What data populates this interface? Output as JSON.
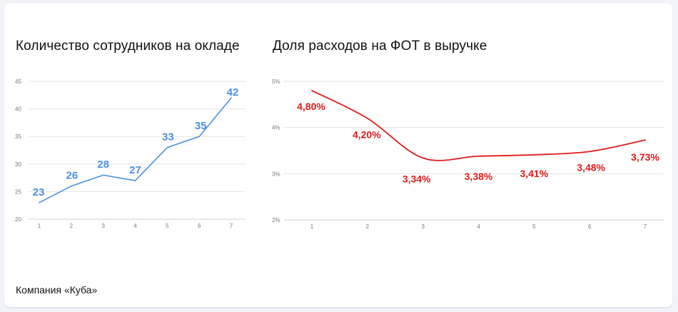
{
  "footer": "Компания «Куба»",
  "colors": {
    "left_series": "#4a90e2",
    "right_series": "#e01b1b",
    "grid": "#e3e3e3",
    "tick": "#777777"
  },
  "chart_data": [
    {
      "type": "line",
      "title": "Количество сотрудников на окладе",
      "x": [
        1,
        2,
        3,
        4,
        5,
        6,
        7
      ],
      "series": [
        {
          "values": [
            23,
            26,
            28,
            27,
            33,
            35,
            42
          ]
        }
      ],
      "data_labels": [
        "23",
        "26",
        "28",
        "27",
        "33",
        "35",
        "42"
      ],
      "ylim": [
        20,
        45
      ],
      "yticks": [
        20,
        25,
        30,
        35,
        40,
        45
      ],
      "xlabel": "",
      "ylabel": "",
      "grid": true,
      "smooth": false
    },
    {
      "type": "line",
      "title": "Доля расходов на ФОТ в выручке",
      "x": [
        1,
        2,
        3,
        4,
        5,
        6,
        7
      ],
      "series": [
        {
          "values": [
            4.8,
            4.2,
            3.34,
            3.38,
            3.41,
            3.48,
            3.73
          ]
        }
      ],
      "data_labels": [
        "4,80%",
        "4,20%",
        "3,34%",
        "3,38%",
        "3,41%",
        "3,48%",
        "3,73%"
      ],
      "ylim": [
        2,
        5
      ],
      "yticks": [
        2,
        3,
        4,
        5
      ],
      "ytick_labels": [
        "2%",
        "3%",
        "4%",
        "5%"
      ],
      "xlabel": "",
      "ylabel": "",
      "grid": true,
      "smooth": true
    }
  ]
}
